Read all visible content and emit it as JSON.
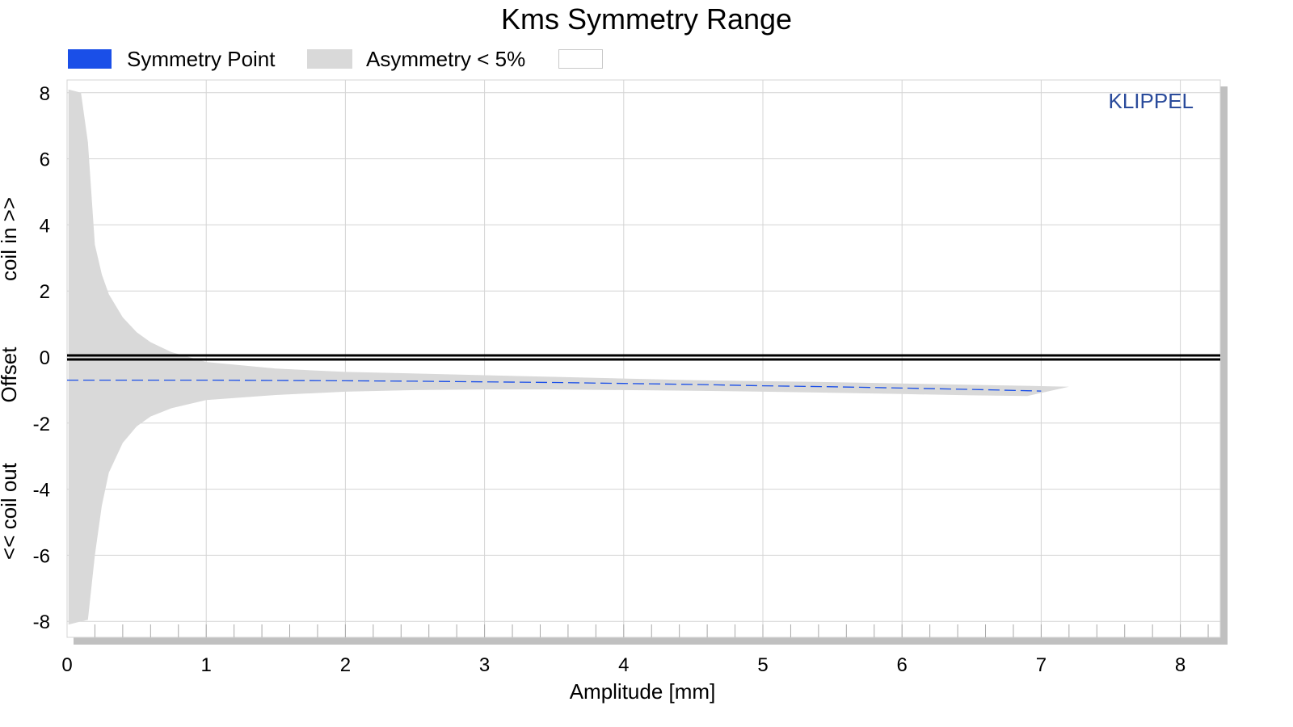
{
  "chart_data": {
    "type": "area",
    "title": "Kms Symmetry Range",
    "xlabel": "Amplitude [mm]",
    "ylabel": {
      "top": "coil in >>",
      "middle": "Offset",
      "bottom": "<< coil out"
    },
    "xlim": [
      0,
      8.3
    ],
    "ylim": [
      -8.6,
      8.4
    ],
    "xticks": [
      "0",
      "1",
      "2",
      "3",
      "4",
      "5",
      "6",
      "7",
      "8"
    ],
    "yticks": [
      "8",
      "6",
      "4",
      "2",
      "0",
      "-2",
      "-4",
      "-6",
      "-8"
    ],
    "grid": true,
    "legend_position": "top-left",
    "watermark": "KLIPPEL",
    "colors": {
      "symmetry_point": "#1a4fe8",
      "band": "#d9d9d9",
      "zero_line": "#000000",
      "grid": "#d4d4d4",
      "watermark": "#2a4b9b",
      "frame_shadow": "#c0c0c0"
    },
    "series": [
      {
        "name": "Symmetry Point",
        "style": "dashed",
        "x": [
          0,
          0.5,
          1,
          1.5,
          2,
          2.5,
          3,
          3.5,
          4,
          4.5,
          5,
          5.5,
          6,
          6.5,
          7
        ],
        "y": [
          -0.7,
          -0.7,
          -0.7,
          -0.71,
          -0.72,
          -0.73,
          -0.75,
          -0.77,
          -0.8,
          -0.83,
          -0.87,
          -0.9,
          -0.94,
          -0.98,
          -1.03
        ]
      },
      {
        "name": "Asymmetry < 5%",
        "style": "band",
        "x": [
          0.01,
          0.1,
          0.15,
          0.2,
          0.25,
          0.3,
          0.4,
          0.5,
          0.6,
          0.75,
          1.0,
          1.5,
          2.0,
          2.5,
          3.0,
          3.5,
          4.0,
          4.5,
          5.0,
          5.5,
          6.0,
          6.5,
          6.9,
          7.2
        ],
        "upper": [
          8.1,
          8.0,
          6.5,
          3.4,
          2.5,
          1.9,
          1.2,
          0.75,
          0.45,
          0.15,
          -0.15,
          -0.35,
          -0.45,
          -0.5,
          -0.55,
          -0.6,
          -0.65,
          -0.7,
          -0.73,
          -0.76,
          -0.8,
          -0.84,
          -0.87,
          -0.9
        ],
        "lower": [
          -8.1,
          -8.0,
          -7.95,
          -6.0,
          -4.5,
          -3.5,
          -2.6,
          -2.1,
          -1.8,
          -1.55,
          -1.3,
          -1.15,
          -1.05,
          -1.0,
          -0.98,
          -0.98,
          -1.0,
          -1.02,
          -1.05,
          -1.08,
          -1.12,
          -1.16,
          -1.18,
          -0.9
        ]
      },
      {
        "name": "",
        "style": "legend-empty",
        "x": [],
        "y": []
      }
    ],
    "reference_line": {
      "y": 0
    }
  }
}
